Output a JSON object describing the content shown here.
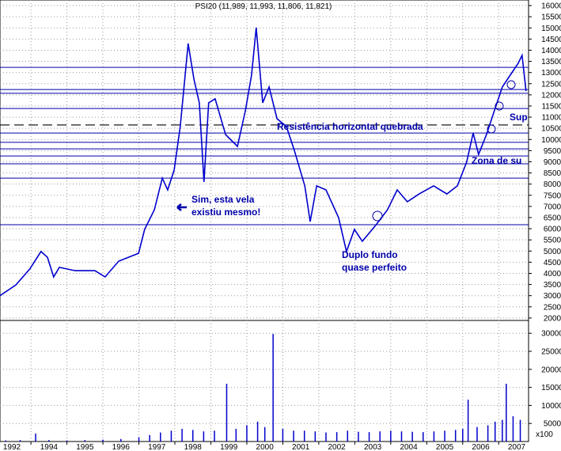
{
  "chart_data": [
    {
      "type": "line",
      "title": "PSI20 (11,989, 11,993, 11,806, 11,821)",
      "color": "#0000cc",
      "x": [
        1993.14,
        1993.58,
        1993.97,
        1994.28,
        1994.46,
        1994.63,
        1994.79,
        1995.23,
        1995.78,
        1996.06,
        1996.44,
        1996.99,
        1997.16,
        1997.43,
        1997.65,
        1997.8,
        1997.98,
        1998.15,
        1998.37,
        1998.53,
        1998.68,
        1998.81,
        1998.94,
        1999.12,
        1999.41,
        1999.74,
        1999.96,
        2000.13,
        2000.26,
        2000.44,
        2000.62,
        2000.84,
        2001.1,
        2001.32,
        2001.61,
        2001.76,
        2001.94,
        2002.2,
        2002.55,
        2002.77,
        2002.99,
        2003.21,
        2003.58,
        2003.91,
        2004.18,
        2004.46,
        2004.79,
        2005.19,
        2005.56,
        2005.85,
        2006.11,
        2006.29,
        2006.44,
        2006.66,
        2006.88,
        2007.1,
        2007.32,
        2007.54,
        2007.65,
        2007.76
      ],
      "values": [
        3000,
        3480,
        4200,
        4980,
        4720,
        3840,
        4270,
        4120,
        4120,
        3840,
        4550,
        4900,
        5970,
        6850,
        8270,
        7740,
        8630,
        10580,
        14300,
        12700,
        11640,
        8100,
        11640,
        11820,
        10220,
        9690,
        11290,
        12880,
        15010,
        11640,
        12350,
        10930,
        10580,
        9510,
        7920,
        6320,
        7920,
        7740,
        6500,
        4980,
        5970,
        5440,
        6150,
        6850,
        7740,
        7210,
        7560,
        7920,
        7560,
        7920,
        8990,
        10290,
        9330,
        10220,
        11290,
        12350,
        12880,
        13410,
        13770,
        12170
      ],
      "reference_lines": [
        13230,
        12240,
        12070,
        11390,
        10290,
        9870,
        9580,
        9260,
        8910,
        8270,
        6180
      ],
      "dashed_line": 10650,
      "annotations": [
        "Sim, esta vela",
        "existiu mesmo!",
        "Duplo fundo",
        "quase perfeito",
        "Resistência horizontal quebrada",
        "Zona de su",
        "Sup"
      ],
      "xlim": [
        1993.14,
        2007.83
      ],
      "xticks": [
        1992,
        1994,
        1995,
        1996,
        1997,
        1998,
        1999,
        2000,
        2001,
        2002,
        2003,
        2004,
        2005,
        2006,
        2007
      ],
      "ylim": [
        1890,
        16250
      ],
      "yticks": [
        2000,
        2500,
        3000,
        3500,
        4000,
        4500,
        5000,
        5500,
        6000,
        6500,
        7000,
        7500,
        8000,
        8500,
        9000,
        9500,
        10000,
        10500,
        11000,
        11500,
        12000,
        12500,
        13000,
        13500,
        14000,
        14500,
        15000,
        15500,
        16000
      ],
      "grid": true
    },
    {
      "type": "bar",
      "color": "#0000cc",
      "unit_label": "x100",
      "x": [
        1993.3,
        1993.7,
        1994.13,
        1994.5,
        1995.0,
        1995.5,
        1996.0,
        1996.5,
        1997.0,
        1997.3,
        1997.6,
        1997.9,
        1998.2,
        1998.5,
        1998.8,
        1999.1,
        1999.44,
        1999.7,
        2000.0,
        2000.3,
        2000.5,
        2000.73,
        2001.0,
        2001.3,
        2001.6,
        2001.9,
        2002.2,
        2002.5,
        2002.8,
        2003.1,
        2003.4,
        2003.7,
        2004.0,
        2004.3,
        2004.6,
        2004.9,
        2005.2,
        2005.5,
        2005.8,
        2006.0,
        2006.15,
        2006.4,
        2006.7,
        2006.9,
        2007.1,
        2007.21,
        2007.4,
        2007.6
      ],
      "values": [
        300,
        400,
        2200,
        400,
        300,
        400,
        500,
        700,
        1200,
        1800,
        2500,
        3000,
        3500,
        3200,
        2800,
        3000,
        16000,
        3500,
        4500,
        5500,
        4000,
        29800,
        3500,
        3000,
        3000,
        2800,
        2500,
        2600,
        3000,
        2700,
        2600,
        2800,
        3000,
        2800,
        2700,
        2600,
        2800,
        3000,
        3200,
        3500,
        11600,
        4000,
        4500,
        5500,
        6000,
        16000,
        7000,
        6000
      ],
      "xlim": [
        1993.14,
        2007.83
      ],
      "ylim": [
        0,
        33550
      ],
      "yticks": [
        5000,
        10000,
        15000,
        20000,
        25000,
        30000
      ],
      "grid": true
    }
  ]
}
